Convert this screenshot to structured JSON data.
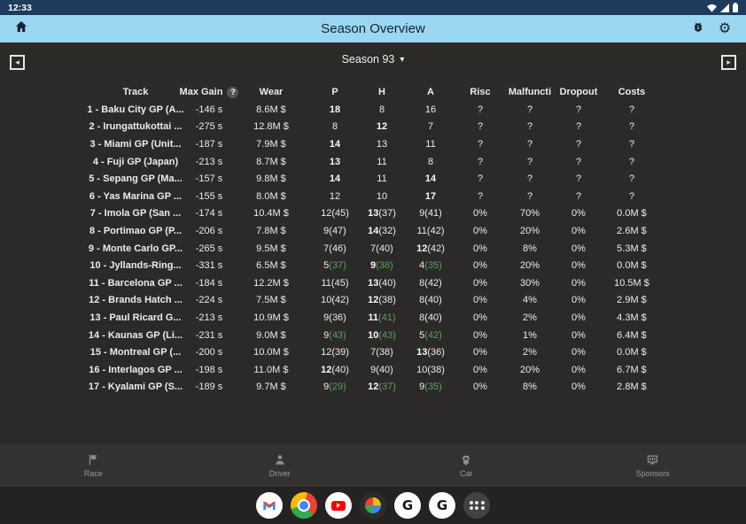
{
  "colors": {
    "status_bar_bg": "#1d3b5d",
    "app_bar_bg": "#9bd6f2",
    "content_bg": "#2b2a28",
    "accent_green": "#5ca05f"
  },
  "status_bar": {
    "time": "12:33",
    "icons": [
      "wifi-icon",
      "signal-icon",
      "battery-icon"
    ]
  },
  "app_bar": {
    "title": "Season Overview",
    "icons": [
      "home-icon",
      "bug-icon",
      "gear-icon"
    ]
  },
  "season_nav": {
    "selected": "Season 93",
    "caret": "▾",
    "prev": "◂",
    "next": "▸"
  },
  "table": {
    "help_badge": "?",
    "columns": [
      "Track",
      "Max Gain",
      "Wear",
      "P",
      "H",
      "A",
      "Risc",
      "Malfuncti",
      "Dropout",
      "Costs"
    ],
    "rows": [
      {
        "track": "1 - Baku City GP (A...",
        "gain": "-146 s",
        "wear": "8.6M $",
        "p": {
          "v": "18",
          "s": "",
          "b": true,
          "g": false
        },
        "h": {
          "v": "8",
          "s": "",
          "b": false,
          "g": false
        },
        "a": {
          "v": "16",
          "s": "",
          "b": false,
          "g": false
        },
        "risc": "?",
        "malf": "?",
        "drop": "?",
        "costs": "?"
      },
      {
        "track": "2 - Irungattukottai ...",
        "gain": "-275 s",
        "wear": "12.8M $",
        "p": {
          "v": "8",
          "s": "",
          "b": false,
          "g": false
        },
        "h": {
          "v": "12",
          "s": "",
          "b": true,
          "g": false
        },
        "a": {
          "v": "7",
          "s": "",
          "b": false,
          "g": false
        },
        "risc": "?",
        "malf": "?",
        "drop": "?",
        "costs": "?"
      },
      {
        "track": "3 - Miami GP (Unit...",
        "gain": "-187 s",
        "wear": "7.9M $",
        "p": {
          "v": "14",
          "s": "",
          "b": true,
          "g": false
        },
        "h": {
          "v": "13",
          "s": "",
          "b": false,
          "g": false
        },
        "a": {
          "v": "11",
          "s": "",
          "b": false,
          "g": false
        },
        "risc": "?",
        "malf": "?",
        "drop": "?",
        "costs": "?"
      },
      {
        "track": "4 - Fuji GP (Japan)",
        "gain": "-213 s",
        "wear": "8.7M $",
        "p": {
          "v": "13",
          "s": "",
          "b": true,
          "g": false
        },
        "h": {
          "v": "11",
          "s": "",
          "b": false,
          "g": false
        },
        "a": {
          "v": "8",
          "s": "",
          "b": false,
          "g": false
        },
        "risc": "?",
        "malf": "?",
        "drop": "?",
        "costs": "?"
      },
      {
        "track": "5 - Sepang GP (Ma...",
        "gain": "-157 s",
        "wear": "9.8M $",
        "p": {
          "v": "14",
          "s": "",
          "b": true,
          "g": false
        },
        "h": {
          "v": "11",
          "s": "",
          "b": false,
          "g": false
        },
        "a": {
          "v": "14",
          "s": "",
          "b": true,
          "g": false
        },
        "risc": "?",
        "malf": "?",
        "drop": "?",
        "costs": "?"
      },
      {
        "track": "6 - Yas Marina GP ...",
        "gain": "-155 s",
        "wear": "8.0M $",
        "p": {
          "v": "12",
          "s": "",
          "b": false,
          "g": false
        },
        "h": {
          "v": "10",
          "s": "",
          "b": false,
          "g": false
        },
        "a": {
          "v": "17",
          "s": "",
          "b": true,
          "g": false
        },
        "risc": "?",
        "malf": "?",
        "drop": "?",
        "costs": "?"
      },
      {
        "track": "7 - Imola GP (San ...",
        "gain": "-174 s",
        "wear": "10.4M $",
        "p": {
          "v": "12",
          "s": "(45)",
          "b": false,
          "g": false
        },
        "h": {
          "v": "13",
          "s": "(37)",
          "b": true,
          "g": false
        },
        "a": {
          "v": "9",
          "s": "(41)",
          "b": false,
          "g": false
        },
        "risc": "0%",
        "malf": "70%",
        "drop": "0%",
        "costs": "0.0M $"
      },
      {
        "track": "8 - Portimao GP (P...",
        "gain": "-206 s",
        "wear": "7.8M $",
        "p": {
          "v": "9",
          "s": "(47)",
          "b": false,
          "g": false
        },
        "h": {
          "v": "14",
          "s": "(32)",
          "b": true,
          "g": false
        },
        "a": {
          "v": "11",
          "s": "(42)",
          "b": false,
          "g": false
        },
        "risc": "0%",
        "malf": "20%",
        "drop": "0%",
        "costs": "2.6M $"
      },
      {
        "track": "9 - Monte Carlo GP...",
        "gain": "-265 s",
        "wear": "9.5M $",
        "p": {
          "v": "7",
          "s": "(46)",
          "b": false,
          "g": false
        },
        "h": {
          "v": "7",
          "s": "(40)",
          "b": false,
          "g": false
        },
        "a": {
          "v": "12",
          "s": "(42)",
          "b": true,
          "g": false
        },
        "risc": "0%",
        "malf": "8%",
        "drop": "0%",
        "costs": "5.3M $"
      },
      {
        "track": "10 - Jyllands-Ring...",
        "gain": "-331 s",
        "wear": "6.5M $",
        "p": {
          "v": "5",
          "s": "(37)",
          "b": false,
          "g": true
        },
        "h": {
          "v": "9",
          "s": "(38)",
          "b": true,
          "g": true
        },
        "a": {
          "v": "4",
          "s": "(35)",
          "b": false,
          "g": true
        },
        "risc": "0%",
        "malf": "20%",
        "drop": "0%",
        "costs": "0.0M $"
      },
      {
        "track": "11 - Barcelona GP ...",
        "gain": "-184 s",
        "wear": "12.2M $",
        "p": {
          "v": "11",
          "s": "(45)",
          "b": false,
          "g": false
        },
        "h": {
          "v": "13",
          "s": "(40)",
          "b": true,
          "g": false
        },
        "a": {
          "v": "8",
          "s": "(42)",
          "b": false,
          "g": false
        },
        "risc": "0%",
        "malf": "30%",
        "drop": "0%",
        "costs": "10.5M $"
      },
      {
        "track": "12 - Brands Hatch ...",
        "gain": "-224 s",
        "wear": "7.5M $",
        "p": {
          "v": "10",
          "s": "(42)",
          "b": false,
          "g": false
        },
        "h": {
          "v": "12",
          "s": "(38)",
          "b": true,
          "g": false
        },
        "a": {
          "v": "8",
          "s": "(40)",
          "b": false,
          "g": false
        },
        "risc": "0%",
        "malf": "4%",
        "drop": "0%",
        "costs": "2.9M $"
      },
      {
        "track": "13 - Paul Ricard G...",
        "gain": "-213 s",
        "wear": "10.9M $",
        "p": {
          "v": "9",
          "s": "(36)",
          "b": false,
          "g": false
        },
        "h": {
          "v": "11",
          "s": "(41)",
          "b": true,
          "g": true
        },
        "a": {
          "v": "8",
          "s": "(40)",
          "b": false,
          "g": false
        },
        "risc": "0%",
        "malf": "2%",
        "drop": "0%",
        "costs": "4.3M $"
      },
      {
        "track": "14 - Kaunas GP (Li...",
        "gain": "-231 s",
        "wear": "9.0M $",
        "p": {
          "v": "9",
          "s": "(43)",
          "b": false,
          "g": true
        },
        "h": {
          "v": "10",
          "s": "(43)",
          "b": true,
          "g": true
        },
        "a": {
          "v": "5",
          "s": "(42)",
          "b": false,
          "g": true
        },
        "risc": "0%",
        "malf": "1%",
        "drop": "0%",
        "costs": "6.4M $"
      },
      {
        "track": "15 - Montreal GP (...",
        "gain": "-200 s",
        "wear": "10.0M $",
        "p": {
          "v": "12",
          "s": "(39)",
          "b": false,
          "g": false
        },
        "h": {
          "v": "7",
          "s": "(38)",
          "b": false,
          "g": false
        },
        "a": {
          "v": "13",
          "s": "(36)",
          "b": true,
          "g": false
        },
        "risc": "0%",
        "malf": "2%",
        "drop": "0%",
        "costs": "0.0M $"
      },
      {
        "track": "16 - Interlagos GP ...",
        "gain": "-198 s",
        "wear": "11.0M $",
        "p": {
          "v": "12",
          "s": "(40)",
          "b": true,
          "g": false
        },
        "h": {
          "v": "9",
          "s": "(40)",
          "b": false,
          "g": false
        },
        "a": {
          "v": "10",
          "s": "(38)",
          "b": false,
          "g": false
        },
        "risc": "0%",
        "malf": "20%",
        "drop": "0%",
        "costs": "6.7M $"
      },
      {
        "track": "17 - Kyalami GP (S...",
        "gain": "-189 s",
        "wear": "9.7M $",
        "p": {
          "v": "9",
          "s": "(29)",
          "b": false,
          "g": true
        },
        "h": {
          "v": "12",
          "s": "(37)",
          "b": true,
          "g": true
        },
        "a": {
          "v": "9",
          "s": "(35)",
          "b": false,
          "g": true
        },
        "risc": "0%",
        "malf": "8%",
        "drop": "0%",
        "costs": "2.8M $"
      }
    ]
  },
  "bottom_nav": {
    "items": [
      {
        "label": "Race",
        "icon": "flag-icon"
      },
      {
        "label": "Driver",
        "icon": "person-icon"
      },
      {
        "label": "Car",
        "icon": "car-icon"
      },
      {
        "label": "Sponsors",
        "icon": "billboard-icon"
      }
    ]
  },
  "taskbar": {
    "apps": [
      "gmail-icon",
      "chrome-icon",
      "youtube-icon",
      "google-photos-icon",
      "racing-app-icon",
      "racing-app-icon-2",
      "app-drawer-icon"
    ]
  }
}
